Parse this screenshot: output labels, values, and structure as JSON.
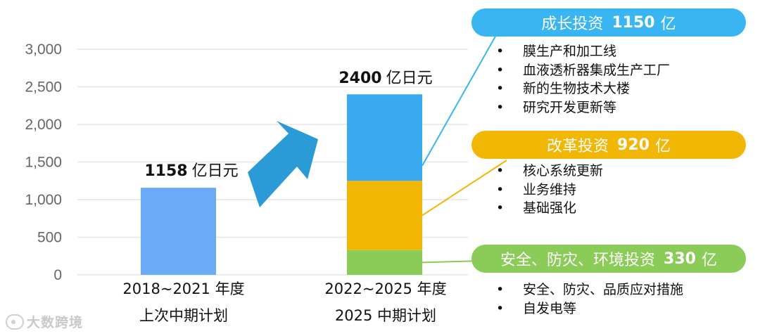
{
  "chart_data": {
    "type": "bar",
    "stacked": true,
    "ylim": [
      0,
      3000
    ],
    "yticks": [
      "0",
      "500",
      "1,000",
      "1,500",
      "2,000",
      "2,500",
      "3,000"
    ],
    "ytick_values": [
      0,
      500,
      1000,
      1500,
      2000,
      2500,
      3000
    ],
    "grid": true,
    "categories": [
      {
        "line1": "2018~2021 年度",
        "line2": "上次中期计划"
      },
      {
        "line1": "2022~2025 年度",
        "line2": "2025 中期计划"
      }
    ],
    "totals": [
      {
        "value": "1158",
        "unit": "亿日元"
      },
      {
        "value": "2400",
        "unit": "亿日元"
      }
    ],
    "series": [
      {
        "name": "上次中期计划",
        "values": [
          1158,
          0
        ],
        "color": "#6aaaf6"
      },
      {
        "name": "安全、防灾、环境投资",
        "values": [
          0,
          330
        ],
        "color": "#8bcb57"
      },
      {
        "name": "改革投资",
        "values": [
          0,
          920
        ],
        "color": "#f2b705"
      },
      {
        "name": "成长投资",
        "values": [
          0,
          1150
        ],
        "color": "#3aaaf0"
      }
    ]
  },
  "callouts": [
    {
      "title": "成长投资",
      "value": "1150",
      "unit": "亿",
      "color": "#39b5f2",
      "items": [
        "膜生产和加工线",
        "血液透析器集成生产工厂",
        "新的生物技术大楼",
        "研究开发更新等"
      ]
    },
    {
      "title": "改革投资",
      "value": "920",
      "unit": "亿",
      "color": "#f2b705",
      "items": [
        "核心系统更新",
        "业务维持",
        "基础强化"
      ]
    },
    {
      "title": "安全、防灾、环境投资",
      "value": "330",
      "unit": "亿",
      "color": "#8bcb57",
      "items": [
        "安全、防灾、品质应对措施",
        "自发电等"
      ]
    }
  ],
  "arrow_color": "#2a9bd6",
  "watermark": "大数跨境"
}
